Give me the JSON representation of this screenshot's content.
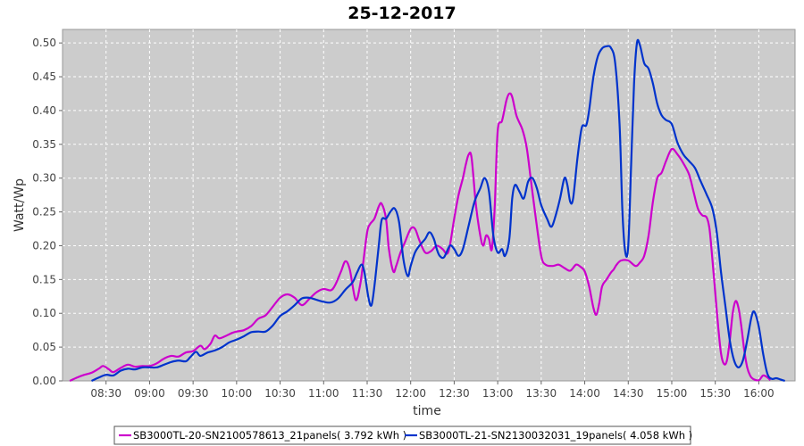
{
  "chart_data": {
    "type": "line",
    "title": "25-12-2017",
    "xlabel": "time",
    "ylabel": "Watt/Wp",
    "xlim": [
      "08:00",
      "16:25"
    ],
    "ylim": [
      0,
      0.52
    ],
    "x_ticks": [
      "08:30",
      "09:00",
      "09:30",
      "10:00",
      "10:30",
      "11:00",
      "11:30",
      "12:00",
      "12:30",
      "13:00",
      "13:30",
      "14:00",
      "14:30",
      "15:00",
      "15:30",
      "16:00"
    ],
    "y_ticks": [
      "0.00",
      "0.05",
      "0.10",
      "0.15",
      "0.20",
      "0.25",
      "0.30",
      "0.35",
      "0.40",
      "0.45",
      "0.50"
    ],
    "grid": true,
    "legend_position": "bottom",
    "plot_background": "#cccccc",
    "series": [
      {
        "name": "SB3000TL-20-SN2100578613_21panels( 3.792 kWh )",
        "color": "#cc00cc",
        "points": [
          [
            "08:05",
            0.0
          ],
          [
            "08:10",
            0.005
          ],
          [
            "08:15",
            0.009
          ],
          [
            "08:20",
            0.012
          ],
          [
            "08:25",
            0.018
          ],
          [
            "08:28",
            0.022
          ],
          [
            "08:32",
            0.017
          ],
          [
            "08:35",
            0.013
          ],
          [
            "08:40",
            0.019
          ],
          [
            "08:45",
            0.024
          ],
          [
            "08:50",
            0.021
          ],
          [
            "08:55",
            0.022
          ],
          [
            "09:00",
            0.022
          ],
          [
            "09:05",
            0.026
          ],
          [
            "09:10",
            0.033
          ],
          [
            "09:15",
            0.037
          ],
          [
            "09:20",
            0.036
          ],
          [
            "09:25",
            0.042
          ],
          [
            "09:30",
            0.044
          ],
          [
            "09:35",
            0.052
          ],
          [
            "09:38",
            0.047
          ],
          [
            "09:42",
            0.055
          ],
          [
            "09:45",
            0.067
          ],
          [
            "09:48",
            0.063
          ],
          [
            "09:52",
            0.066
          ],
          [
            "09:57",
            0.071
          ],
          [
            "10:00",
            0.073
          ],
          [
            "10:05",
            0.075
          ],
          [
            "10:10",
            0.081
          ],
          [
            "10:15",
            0.092
          ],
          [
            "10:20",
            0.097
          ],
          [
            "10:25",
            0.11
          ],
          [
            "10:30",
            0.123
          ],
          [
            "10:35",
            0.128
          ],
          [
            "10:40",
            0.123
          ],
          [
            "10:45",
            0.112
          ],
          [
            "10:50",
            0.121
          ],
          [
            "10:55",
            0.131
          ],
          [
            "11:00",
            0.136
          ],
          [
            "11:05",
            0.134
          ],
          [
            "11:08",
            0.142
          ],
          [
            "11:12",
            0.162
          ],
          [
            "11:15",
            0.177
          ],
          [
            "11:18",
            0.165
          ],
          [
            "11:22",
            0.12
          ],
          [
            "11:25",
            0.14
          ],
          [
            "11:27",
            0.17
          ],
          [
            "11:30",
            0.22
          ],
          [
            "11:32",
            0.232
          ],
          [
            "11:35",
            0.24
          ],
          [
            "11:38",
            0.258
          ],
          [
            "11:40",
            0.262
          ],
          [
            "11:43",
            0.24
          ],
          [
            "11:45",
            0.195
          ],
          [
            "11:48",
            0.162
          ],
          [
            "11:50",
            0.17
          ],
          [
            "11:53",
            0.19
          ],
          [
            "11:56",
            0.205
          ],
          [
            "12:00",
            0.225
          ],
          [
            "12:03",
            0.225
          ],
          [
            "12:06",
            0.208
          ],
          [
            "12:10",
            0.19
          ],
          [
            "12:14",
            0.192
          ],
          [
            "12:18",
            0.2
          ],
          [
            "12:22",
            0.195
          ],
          [
            "12:25",
            0.188
          ],
          [
            "12:27",
            0.2
          ],
          [
            "12:30",
            0.24
          ],
          [
            "12:33",
            0.275
          ],
          [
            "12:36",
            0.3
          ],
          [
            "12:38",
            0.32
          ],
          [
            "12:40",
            0.335
          ],
          [
            "12:42",
            0.33
          ],
          [
            "12:45",
            0.26
          ],
          [
            "12:48",
            0.215
          ],
          [
            "12:50",
            0.2
          ],
          [
            "12:52",
            0.215
          ],
          [
            "12:54",
            0.21
          ],
          [
            "12:56",
            0.195
          ],
          [
            "12:58",
            0.26
          ],
          [
            "13:00",
            0.37
          ],
          [
            "13:03",
            0.385
          ],
          [
            "13:06",
            0.415
          ],
          [
            "13:08",
            0.425
          ],
          [
            "13:10",
            0.42
          ],
          [
            "13:13",
            0.392
          ],
          [
            "13:17",
            0.372
          ],
          [
            "13:20",
            0.345
          ],
          [
            "13:23",
            0.295
          ],
          [
            "13:26",
            0.245
          ],
          [
            "13:30",
            0.185
          ],
          [
            "13:33",
            0.172
          ],
          [
            "13:38",
            0.17
          ],
          [
            "13:42",
            0.172
          ],
          [
            "13:46",
            0.167
          ],
          [
            "13:50",
            0.163
          ],
          [
            "13:54",
            0.172
          ],
          [
            "13:57",
            0.169
          ],
          [
            "14:00",
            0.162
          ],
          [
            "14:03",
            0.14
          ],
          [
            "14:06",
            0.108
          ],
          [
            "14:08",
            0.098
          ],
          [
            "14:10",
            0.115
          ],
          [
            "14:12",
            0.14
          ],
          [
            "14:15",
            0.15
          ],
          [
            "14:18",
            0.16
          ],
          [
            "14:20",
            0.165
          ],
          [
            "14:22",
            0.172
          ],
          [
            "14:25",
            0.178
          ],
          [
            "14:30",
            0.178
          ],
          [
            "14:35",
            0.17
          ],
          [
            "14:38",
            0.175
          ],
          [
            "14:41",
            0.185
          ],
          [
            "14:44",
            0.215
          ],
          [
            "14:47",
            0.265
          ],
          [
            "14:50",
            0.3
          ],
          [
            "14:53",
            0.308
          ],
          [
            "14:56",
            0.325
          ],
          [
            "15:00",
            0.343
          ],
          [
            "15:04",
            0.335
          ],
          [
            "15:08",
            0.322
          ],
          [
            "15:12",
            0.305
          ],
          [
            "15:15",
            0.28
          ],
          [
            "15:18",
            0.255
          ],
          [
            "15:21",
            0.245
          ],
          [
            "15:24",
            0.242
          ],
          [
            "15:26",
            0.225
          ],
          [
            "15:28",
            0.18
          ],
          [
            "15:30",
            0.13
          ],
          [
            "15:32",
            0.08
          ],
          [
            "15:34",
            0.04
          ],
          [
            "15:36",
            0.025
          ],
          [
            "15:38",
            0.03
          ],
          [
            "15:40",
            0.06
          ],
          [
            "15:42",
            0.1
          ],
          [
            "15:44",
            0.118
          ],
          [
            "15:46",
            0.108
          ],
          [
            "15:48",
            0.08
          ],
          [
            "15:50",
            0.045
          ],
          [
            "15:52",
            0.02
          ],
          [
            "15:54",
            0.008
          ],
          [
            "15:56",
            0.003
          ],
          [
            "16:00",
            0.001
          ],
          [
            "16:03",
            0.008
          ],
          [
            "16:06",
            0.005
          ],
          [
            "16:08",
            0.001
          ]
        ]
      },
      {
        "name": "SB3000TL-21-SN2130032031_19panels( 4.058 kWh )",
        "color": "#0033cc",
        "points": [
          [
            "08:20",
            0.0
          ],
          [
            "08:25",
            0.005
          ],
          [
            "08:30",
            0.009
          ],
          [
            "08:35",
            0.008
          ],
          [
            "08:40",
            0.015
          ],
          [
            "08:45",
            0.018
          ],
          [
            "08:50",
            0.017
          ],
          [
            "08:55",
            0.02
          ],
          [
            "09:00",
            0.02
          ],
          [
            "09:05",
            0.02
          ],
          [
            "09:10",
            0.024
          ],
          [
            "09:15",
            0.028
          ],
          [
            "09:20",
            0.03
          ],
          [
            "09:25",
            0.029
          ],
          [
            "09:28",
            0.035
          ],
          [
            "09:32",
            0.043
          ],
          [
            "09:35",
            0.037
          ],
          [
            "09:40",
            0.042
          ],
          [
            "09:45",
            0.045
          ],
          [
            "09:50",
            0.05
          ],
          [
            "09:55",
            0.057
          ],
          [
            "10:00",
            0.061
          ],
          [
            "10:05",
            0.066
          ],
          [
            "10:10",
            0.072
          ],
          [
            "10:15",
            0.073
          ],
          [
            "10:20",
            0.073
          ],
          [
            "10:25",
            0.082
          ],
          [
            "10:30",
            0.096
          ],
          [
            "10:35",
            0.103
          ],
          [
            "10:40",
            0.112
          ],
          [
            "10:45",
            0.122
          ],
          [
            "10:50",
            0.123
          ],
          [
            "10:55",
            0.12
          ],
          [
            "11:00",
            0.117
          ],
          [
            "11:05",
            0.116
          ],
          [
            "11:10",
            0.122
          ],
          [
            "11:15",
            0.135
          ],
          [
            "11:20",
            0.146
          ],
          [
            "11:23",
            0.16
          ],
          [
            "11:26",
            0.172
          ],
          [
            "11:28",
            0.162
          ],
          [
            "11:31",
            0.122
          ],
          [
            "11:33",
            0.112
          ],
          [
            "11:35",
            0.14
          ],
          [
            "11:38",
            0.2
          ],
          [
            "11:40",
            0.238
          ],
          [
            "11:43",
            0.24
          ],
          [
            "11:46",
            0.25
          ],
          [
            "11:49",
            0.255
          ],
          [
            "11:52",
            0.235
          ],
          [
            "11:55",
            0.18
          ],
          [
            "11:58",
            0.155
          ],
          [
            "12:00",
            0.17
          ],
          [
            "12:03",
            0.19
          ],
          [
            "12:06",
            0.2
          ],
          [
            "12:10",
            0.21
          ],
          [
            "12:13",
            0.22
          ],
          [
            "12:16",
            0.21
          ],
          [
            "12:18",
            0.195
          ],
          [
            "12:20",
            0.185
          ],
          [
            "12:23",
            0.183
          ],
          [
            "12:27",
            0.2
          ],
          [
            "12:30",
            0.195
          ],
          [
            "12:33",
            0.185
          ],
          [
            "12:36",
            0.195
          ],
          [
            "12:40",
            0.23
          ],
          [
            "12:44",
            0.265
          ],
          [
            "12:48",
            0.285
          ],
          [
            "12:51",
            0.3
          ],
          [
            "12:54",
            0.28
          ],
          [
            "12:57",
            0.215
          ],
          [
            "13:00",
            0.19
          ],
          [
            "13:03",
            0.195
          ],
          [
            "13:05",
            0.185
          ],
          [
            "13:08",
            0.21
          ],
          [
            "13:10",
            0.27
          ],
          [
            "13:12",
            0.29
          ],
          [
            "13:15",
            0.28
          ],
          [
            "13:18",
            0.27
          ],
          [
            "13:21",
            0.295
          ],
          [
            "13:24",
            0.3
          ],
          [
            "13:27",
            0.285
          ],
          [
            "13:30",
            0.26
          ],
          [
            "13:34",
            0.24
          ],
          [
            "13:37",
            0.228
          ],
          [
            "13:40",
            0.245
          ],
          [
            "13:43",
            0.27
          ],
          [
            "13:46",
            0.3
          ],
          [
            "13:48",
            0.29
          ],
          [
            "13:50",
            0.265
          ],
          [
            "13:52",
            0.27
          ],
          [
            "13:55",
            0.33
          ],
          [
            "13:58",
            0.375
          ],
          [
            "14:01",
            0.378
          ],
          [
            "14:03",
            0.4
          ],
          [
            "14:06",
            0.45
          ],
          [
            "14:09",
            0.48
          ],
          [
            "14:12",
            0.492
          ],
          [
            "14:15",
            0.495
          ],
          [
            "14:18",
            0.493
          ],
          [
            "14:21",
            0.47
          ],
          [
            "14:24",
            0.38
          ],
          [
            "14:26",
            0.25
          ],
          [
            "14:28",
            0.19
          ],
          [
            "14:30",
            0.2
          ],
          [
            "14:32",
            0.32
          ],
          [
            "14:34",
            0.44
          ],
          [
            "14:36",
            0.5
          ],
          [
            "14:38",
            0.497
          ],
          [
            "14:41",
            0.47
          ],
          [
            "14:44",
            0.462
          ],
          [
            "14:47",
            0.44
          ],
          [
            "14:50",
            0.41
          ],
          [
            "14:53",
            0.393
          ],
          [
            "14:56",
            0.386
          ],
          [
            "15:00",
            0.38
          ],
          [
            "15:04",
            0.352
          ],
          [
            "15:08",
            0.335
          ],
          [
            "15:12",
            0.325
          ],
          [
            "15:16",
            0.315
          ],
          [
            "15:20",
            0.295
          ],
          [
            "15:24",
            0.276
          ],
          [
            "15:28",
            0.255
          ],
          [
            "15:31",
            0.22
          ],
          [
            "15:34",
            0.16
          ],
          [
            "15:37",
            0.11
          ],
          [
            "15:40",
            0.06
          ],
          [
            "15:43",
            0.03
          ],
          [
            "15:46",
            0.02
          ],
          [
            "15:49",
            0.03
          ],
          [
            "15:52",
            0.06
          ],
          [
            "15:55",
            0.095
          ],
          [
            "15:57",
            0.102
          ],
          [
            "16:00",
            0.08
          ],
          [
            "16:03",
            0.04
          ],
          [
            "16:06",
            0.01
          ],
          [
            "16:09",
            0.003
          ],
          [
            "16:12",
            0.004
          ],
          [
            "16:15",
            0.002
          ],
          [
            "16:18",
            0.0
          ]
        ]
      }
    ]
  }
}
